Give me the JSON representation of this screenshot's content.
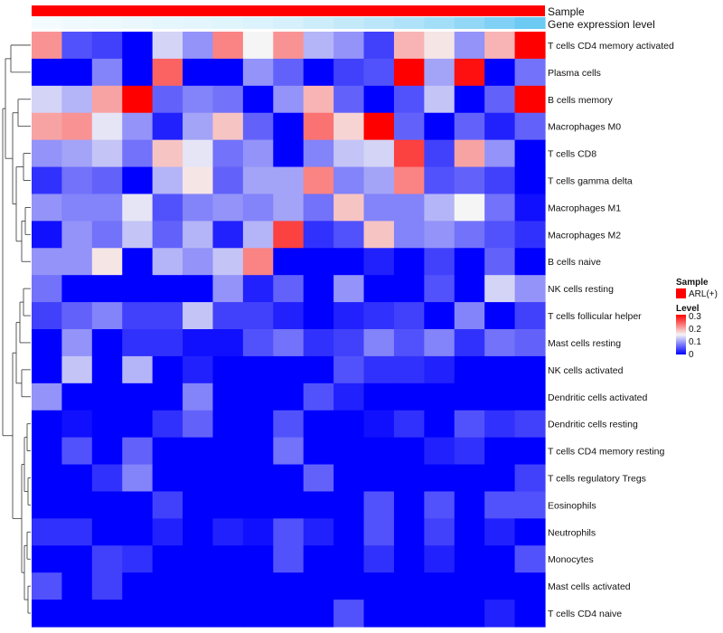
{
  "chart_data": {
    "type": "heatmap",
    "annotations": {
      "sample_label": "Sample",
      "gene_label": "Gene expression level"
    },
    "rows": [
      "T cells CD4 memory activated",
      "Plasma cells",
      "B cells memory",
      "Macrophages M0",
      "T cells CD8",
      "T cells gamma delta",
      "Macrophages M1",
      "Macrophages M2",
      "B cells naive",
      "NK cells resting",
      "T cells follicular helper",
      "Mast cells resting",
      "NK cells activated",
      "Dendritic cells activated",
      "Dendritic cells resting",
      "T cells CD4 memory resting",
      "T cells regulatory  Tregs",
      "Eosinophils",
      "Neutrophils",
      "Monocytes",
      "Mast cells activated",
      "T cells CD4 naive"
    ],
    "n_columns": 17,
    "values": [
      [
        0.21,
        0.05,
        0.04,
        0.0,
        0.13,
        0.09,
        0.22,
        0.15,
        0.21,
        0.11,
        0.09,
        0.04,
        0.19,
        0.16,
        0.09,
        0.19,
        0.3
      ],
      [
        0.0,
        0.0,
        0.08,
        0.0,
        0.24,
        0.0,
        0.0,
        0.09,
        0.06,
        0.0,
        0.04,
        0.05,
        0.3,
        0.1,
        0.29,
        0.0,
        0.07
      ],
      [
        0.13,
        0.11,
        0.2,
        0.3,
        0.06,
        0.08,
        0.07,
        0.0,
        0.09,
        0.19,
        0.06,
        0.0,
        0.05,
        0.12,
        0.0,
        0.06,
        0.3
      ],
      [
        0.2,
        0.21,
        0.14,
        0.09,
        0.02,
        0.1,
        0.18,
        0.06,
        0.0,
        0.23,
        0.17,
        0.3,
        0.06,
        0.0,
        0.06,
        0.02,
        0.06
      ],
      [
        0.09,
        0.1,
        0.12,
        0.07,
        0.18,
        0.14,
        0.07,
        0.09,
        0.0,
        0.08,
        0.12,
        0.13,
        0.26,
        0.04,
        0.2,
        0.09,
        0.0
      ],
      [
        0.03,
        0.07,
        0.06,
        0.0,
        0.11,
        0.16,
        0.06,
        0.1,
        0.1,
        0.22,
        0.08,
        0.1,
        0.22,
        0.05,
        0.06,
        0.04,
        0.0
      ],
      [
        0.09,
        0.08,
        0.08,
        0.14,
        0.05,
        0.08,
        0.09,
        0.08,
        0.1,
        0.07,
        0.18,
        0.08,
        0.08,
        0.11,
        0.15,
        0.07,
        0.01
      ],
      [
        0.01,
        0.09,
        0.07,
        0.12,
        0.06,
        0.11,
        0.02,
        0.11,
        0.26,
        0.03,
        0.05,
        0.18,
        0.08,
        0.09,
        0.07,
        0.05,
        0.03
      ],
      [
        0.09,
        0.09,
        0.16,
        0.0,
        0.11,
        0.09,
        0.12,
        0.22,
        0.0,
        0.0,
        0.0,
        0.02,
        0.0,
        0.04,
        0.0,
        0.06,
        0.0
      ],
      [
        0.07,
        0.0,
        0.0,
        0.0,
        0.0,
        0.0,
        0.09,
        0.02,
        0.06,
        0.0,
        0.09,
        0.0,
        0.0,
        0.05,
        0.0,
        0.13,
        0.09
      ],
      [
        0.04,
        0.06,
        0.08,
        0.04,
        0.04,
        0.12,
        0.04,
        0.04,
        0.02,
        0.0,
        0.02,
        0.03,
        0.04,
        0.0,
        0.08,
        0.0,
        0.04
      ],
      [
        0.0,
        0.09,
        0.0,
        0.03,
        0.03,
        0.01,
        0.01,
        0.05,
        0.07,
        0.03,
        0.04,
        0.08,
        0.05,
        0.08,
        0.03,
        0.07,
        0.06
      ],
      [
        0.0,
        0.12,
        0.0,
        0.11,
        0.0,
        0.02,
        0.0,
        0.0,
        0.0,
        0.0,
        0.05,
        0.03,
        0.03,
        0.02,
        0.0,
        0.0,
        0.0
      ],
      [
        0.09,
        0.0,
        0.0,
        0.0,
        0.0,
        0.08,
        0.0,
        0.0,
        0.0,
        0.05,
        0.02,
        0.0,
        0.0,
        0.0,
        0.0,
        0.0,
        0.0
      ],
      [
        0.0,
        0.01,
        0.0,
        0.0,
        0.03,
        0.06,
        0.0,
        0.0,
        0.05,
        0.0,
        0.0,
        0.01,
        0.03,
        0.0,
        0.05,
        0.03,
        0.04
      ],
      [
        0.0,
        0.05,
        0.0,
        0.06,
        0.0,
        0.0,
        0.0,
        0.0,
        0.07,
        0.0,
        0.0,
        0.0,
        0.0,
        0.02,
        0.03,
        0.0,
        0.0
      ],
      [
        0.0,
        0.0,
        0.03,
        0.08,
        0.0,
        0.0,
        0.0,
        0.0,
        0.0,
        0.06,
        0.0,
        0.0,
        0.0,
        0.0,
        0.0,
        0.0,
        0.04
      ],
      [
        0.0,
        0.0,
        0.0,
        0.0,
        0.04,
        0.0,
        0.0,
        0.0,
        0.0,
        0.0,
        0.0,
        0.05,
        0.0,
        0.05,
        0.0,
        0.05,
        0.05
      ],
      [
        0.03,
        0.03,
        0.0,
        0.0,
        0.02,
        0.0,
        0.02,
        0.01,
        0.05,
        0.02,
        0.0,
        0.05,
        0.0,
        0.04,
        0.0,
        0.02,
        0.0
      ],
      [
        0.0,
        0.0,
        0.04,
        0.03,
        0.0,
        0.0,
        0.0,
        0.0,
        0.05,
        0.0,
        0.0,
        0.03,
        0.0,
        0.02,
        0.0,
        0.0,
        0.05
      ],
      [
        0.05,
        0.0,
        0.04,
        0.0,
        0.0,
        0.0,
        0.0,
        0.0,
        0.0,
        0.0,
        0.0,
        0.0,
        0.0,
        0.0,
        0.0,
        0.0,
        0.0
      ],
      [
        0.0,
        0.0,
        0.0,
        0.0,
        0.0,
        0.0,
        0.0,
        0.0,
        0.0,
        0.0,
        0.05,
        0.0,
        0.0,
        0.0,
        0.0,
        0.02,
        0.0
      ]
    ],
    "gene_expression_level": [
      0.0,
      0.03,
      0.05,
      0.07,
      0.1,
      0.12,
      0.15,
      0.18,
      0.22,
      0.28,
      0.35,
      0.42,
      0.5,
      0.6,
      0.72,
      0.85,
      1.0
    ],
    "color_scale": {
      "min": 0,
      "mid": 0.15,
      "max": 0.3,
      "low_color": "#0000ff",
      "mid_color": "#f5f5f5",
      "high_color": "#ff0000"
    },
    "gene_colors": {
      "low": "#f4fbfe",
      "high": "#6ccaf3"
    },
    "sample_color": "#ff0000",
    "legend": {
      "sample_title": "Sample",
      "sample_entry": "ARL(+)",
      "level_title": "Level",
      "level_ticks": [
        "0.3",
        "0.2",
        "0.1",
        "0"
      ],
      "position": "right"
    }
  }
}
